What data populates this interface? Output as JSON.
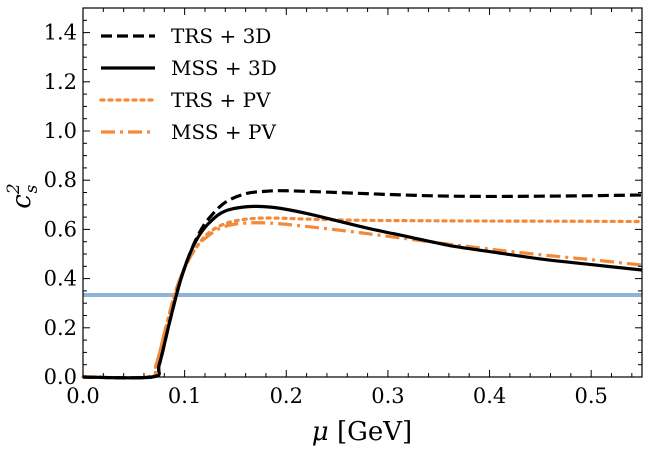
{
  "chart_data": {
    "type": "line",
    "xlabel": "μ [GeV]",
    "ylabel": "c_s^2",
    "xlim": [
      0,
      0.55
    ],
    "ylim": [
      0,
      1.5
    ],
    "xticks": [
      "0.0",
      "0.1",
      "0.2",
      "0.3",
      "0.4",
      "0.5"
    ],
    "xtick_values": [
      0,
      0.1,
      0.2,
      0.3,
      0.4,
      0.5
    ],
    "yticks": [
      "0.0",
      "0.2",
      "0.4",
      "0.6",
      "0.8",
      "1.0",
      "1.2",
      "1.4"
    ],
    "ytick_values": [
      0,
      0.2,
      0.4,
      0.6,
      0.8,
      1.0,
      1.2,
      1.4
    ],
    "grid": false,
    "legend_position": "top-left",
    "reference_line": {
      "y": 0.3333,
      "color": "#8fb3d6"
    },
    "series": [
      {
        "name": "TRS + 3D",
        "color": "#000000",
        "style": "dashed",
        "x": [
          0,
          0.068,
          0.075,
          0.085,
          0.095,
          0.105,
          0.115,
          0.125,
          0.14,
          0.16,
          0.18,
          0.2,
          0.25,
          0.3,
          0.35,
          0.4,
          0.45,
          0.5,
          0.55
        ],
        "y": [
          0,
          0,
          0.05,
          0.22,
          0.38,
          0.5,
          0.59,
          0.65,
          0.71,
          0.745,
          0.755,
          0.757,
          0.75,
          0.742,
          0.736,
          0.734,
          0.735,
          0.737,
          0.74
        ]
      },
      {
        "name": "MSS + 3D",
        "color": "#000000",
        "style": "solid",
        "x": [
          0,
          0.068,
          0.075,
          0.085,
          0.095,
          0.105,
          0.115,
          0.125,
          0.14,
          0.165,
          0.19,
          0.22,
          0.25,
          0.28,
          0.32,
          0.36,
          0.4,
          0.45,
          0.5,
          0.55
        ],
        "y": [
          0,
          0,
          0.05,
          0.22,
          0.38,
          0.5,
          0.58,
          0.63,
          0.675,
          0.693,
          0.688,
          0.665,
          0.635,
          0.605,
          0.57,
          0.535,
          0.51,
          0.48,
          0.457,
          0.435
        ]
      },
      {
        "name": "TRS + PV",
        "color": "#f28a3a",
        "style": "dotted",
        "x": [
          0,
          0.064,
          0.072,
          0.082,
          0.092,
          0.102,
          0.112,
          0.122,
          0.135,
          0.15,
          0.17,
          0.19,
          0.22,
          0.26,
          0.3,
          0.4,
          0.5,
          0.55
        ],
        "y": [
          0,
          0,
          0.05,
          0.21,
          0.36,
          0.46,
          0.53,
          0.58,
          0.615,
          0.635,
          0.645,
          0.646,
          0.642,
          0.638,
          0.636,
          0.634,
          0.633,
          0.632
        ]
      },
      {
        "name": "MSS + PV",
        "color": "#f28a3a",
        "style": "dashdot",
        "x": [
          0,
          0.064,
          0.072,
          0.082,
          0.092,
          0.102,
          0.112,
          0.122,
          0.135,
          0.15,
          0.17,
          0.19,
          0.22,
          0.26,
          0.3,
          0.35,
          0.4,
          0.45,
          0.5,
          0.55
        ],
        "y": [
          0,
          0,
          0.05,
          0.21,
          0.36,
          0.46,
          0.53,
          0.57,
          0.605,
          0.622,
          0.627,
          0.624,
          0.612,
          0.593,
          0.572,
          0.545,
          0.52,
          0.497,
          0.477,
          0.455
        ]
      }
    ]
  }
}
